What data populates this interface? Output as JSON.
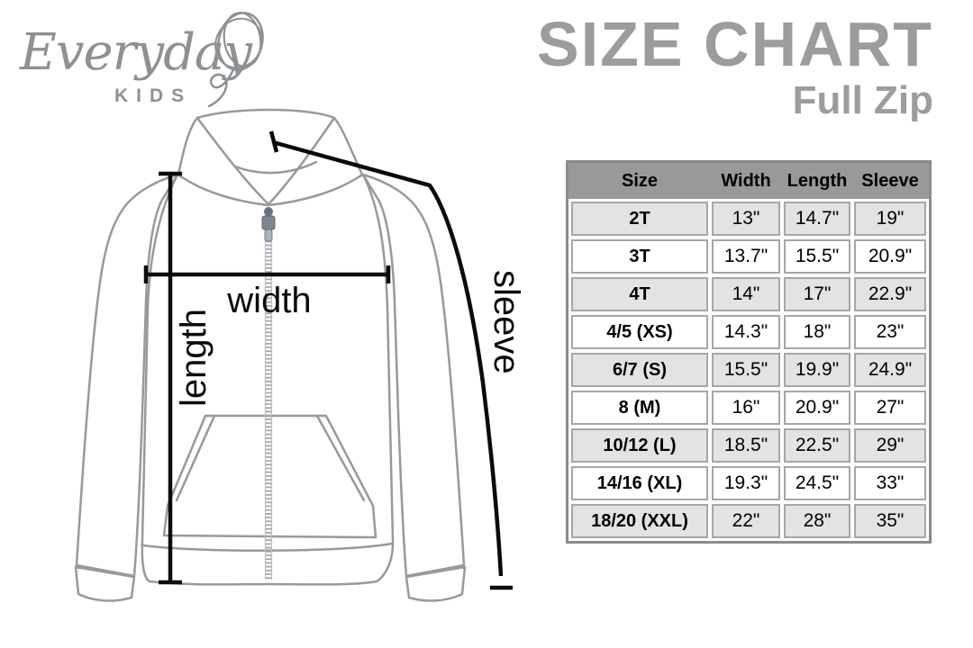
{
  "logo": {
    "brand": "Everyday",
    "sub_brand": "KIDS"
  },
  "header": {
    "title": "SIZE CHART",
    "subtitle": "Full Zip"
  },
  "diagram": {
    "width_label": "width",
    "length_label": "length",
    "sleeve_label": "sleeve"
  },
  "table": {
    "columns": [
      "Size",
      "Width",
      "Length",
      "Sleeve"
    ],
    "rows": [
      {
        "size": "2T",
        "width": "13\"",
        "length": "14.7\"",
        "sleeve": "19\""
      },
      {
        "size": "3T",
        "width": "13.7\"",
        "length": "15.5\"",
        "sleeve": "20.9\""
      },
      {
        "size": "4T",
        "width": "14\"",
        "length": "17\"",
        "sleeve": "22.9\""
      },
      {
        "size": "4/5 (XS)",
        "width": "14.3\"",
        "length": "18\"",
        "sleeve": "23\""
      },
      {
        "size": "6/7 (S)",
        "width": "15.5\"",
        "length": "19.9\"",
        "sleeve": "24.9\""
      },
      {
        "size": "8 (M)",
        "width": "16\"",
        "length": "20.9\"",
        "sleeve": "27\""
      },
      {
        "size": "10/12 (L)",
        "width": "18.5\"",
        "length": "22.5\"",
        "sleeve": "29\""
      },
      {
        "size": "14/16 (XL)",
        "width": "19.3\"",
        "length": "24.5\"",
        "sleeve": "33\""
      },
      {
        "size": "18/20 (XXL)",
        "width": "22\"",
        "length": "28\"",
        "sleeve": "35\""
      }
    ]
  },
  "chart_data": {
    "type": "table",
    "title": "SIZE CHART — Full Zip",
    "columns": [
      "Size",
      "Width (in)",
      "Length (in)",
      "Sleeve (in)"
    ],
    "rows": [
      [
        "2T",
        13,
        14.7,
        19
      ],
      [
        "3T",
        13.7,
        15.5,
        20.9
      ],
      [
        "4T",
        14,
        17,
        22.9
      ],
      [
        "4/5 (XS)",
        14.3,
        18,
        23
      ],
      [
        "6/7 (S)",
        15.5,
        19.9,
        24.9
      ],
      [
        "8 (M)",
        16,
        20.9,
        27
      ],
      [
        "10/12 (L)",
        18.5,
        22.5,
        29
      ],
      [
        "14/16 (XL)",
        19.3,
        24.5,
        33
      ],
      [
        "18/20 (XXL)",
        22,
        28,
        35
      ]
    ]
  },
  "colors": {
    "brand_gray": "#8d9194",
    "title_gray": "#9c9c9c",
    "table_header_bg": "#999999",
    "row_alt_bg": "#e3e3e3",
    "cell_border": "#a6a6a6",
    "outer_border": "#8b8b8b",
    "line_art_gray": "#999999",
    "measurement_black": "#0a0a0a"
  }
}
